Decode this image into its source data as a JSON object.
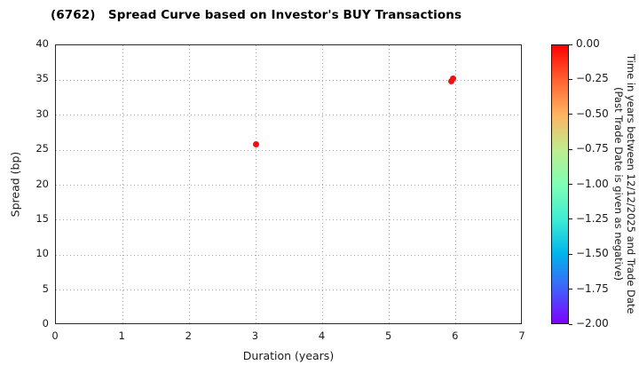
{
  "chart_data": {
    "type": "scatter",
    "title": "(6762)   Spread Curve based on Investor's BUY Transactions",
    "xlabel": "Duration (years)",
    "ylabel": "Spread (bp)",
    "xlim": [
      0,
      7
    ],
    "ylim": [
      0,
      40
    ],
    "x_ticks": [
      0,
      1,
      2,
      3,
      4,
      5,
      6,
      7
    ],
    "y_ticks": [
      0,
      5,
      10,
      15,
      20,
      25,
      30,
      35,
      40
    ],
    "grid": "dotted",
    "legend": "none",
    "points": [
      {
        "duration": 3.0,
        "spread": 25.8,
        "time_value": 0.0,
        "color": "#f01010"
      },
      {
        "duration": 5.93,
        "spread": 34.9,
        "time_value": 0.0,
        "color": "#f01010"
      },
      {
        "duration": 5.96,
        "spread": 35.2,
        "time_value": 0.0,
        "color": "#f01010"
      }
    ],
    "colorbar": {
      "tick_labels": [
        "0.00",
        "−0.25",
        "−0.50",
        "−0.75",
        "−1.00",
        "−1.25",
        "−1.50",
        "−1.75",
        "−2.00"
      ],
      "value_range_top_to_bottom": [
        0.0,
        -2.0
      ],
      "label_line1": "Time in years between 12/12/2025 and Trade Date",
      "label_line2": "(Past Trade Date is given as negative)",
      "gradient_stops_top_to_bottom": [
        "#ff0000",
        "#ff6232",
        "#ffb462",
        "#bfec8e",
        "#80ffb4",
        "#40ecd4",
        "#00b4eb",
        "#4062fa",
        "#8000ff"
      ]
    }
  }
}
